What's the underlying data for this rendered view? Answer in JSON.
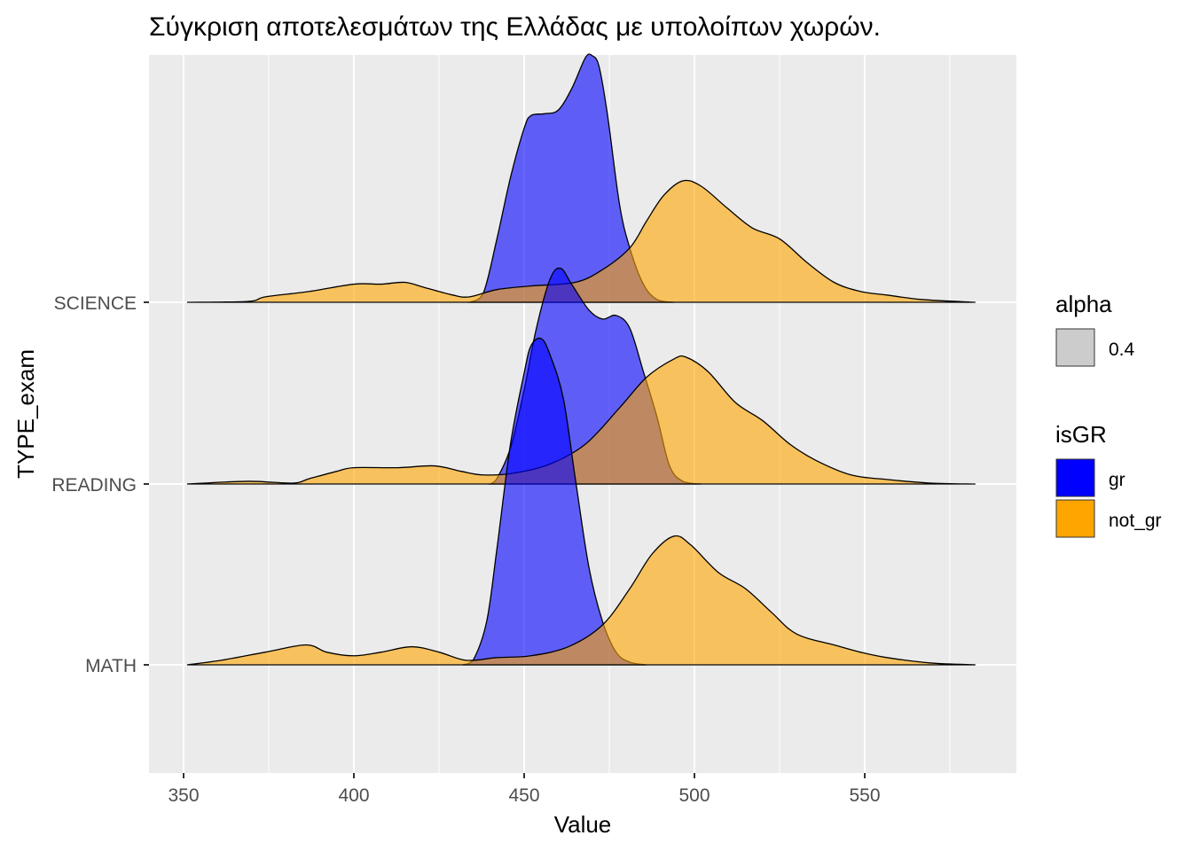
{
  "chart_data": {
    "type": "ridgeline-density",
    "title": "Σύγκριση αποτελεσμάτων της Ελλάδας με υπολοίπων χωρών.",
    "xlabel": "Value",
    "ylabel": "TYPE_exam",
    "xlim": [
      340,
      595
    ],
    "x_ticks": [
      350,
      400,
      450,
      500,
      550
    ],
    "categories": [
      "MATH",
      "READING",
      "SCIENCE"
    ],
    "grid": true,
    "legend_position": "right",
    "legend": {
      "alpha": {
        "title": "alpha",
        "entries": [
          {
            "label": "0.4",
            "color": "#cccccc"
          }
        ]
      },
      "isGR": {
        "title": "isGR",
        "entries": [
          {
            "label": "gr",
            "color": "#0000ff"
          },
          {
            "label": "not_gr",
            "color": "#ffa500"
          }
        ]
      }
    },
    "fill_alpha": 0.6,
    "series": [
      {
        "category": "SCIENCE",
        "group": "gr",
        "color": "#0000ff",
        "x": [
          434,
          438,
          442,
          446,
          450,
          452,
          456,
          460,
          464,
          468,
          470,
          472,
          474.5,
          478,
          481,
          485,
          489,
          494
        ],
        "height": [
          0,
          0.05,
          0.35,
          0.69,
          0.96,
          1.03,
          1.04,
          1.06,
          1.18,
          1.35,
          1.36,
          1.3,
          1.03,
          0.54,
          0.3,
          0.1,
          0.015,
          0
        ]
      },
      {
        "category": "SCIENCE",
        "group": "not_gr",
        "color": "#ffa500",
        "x": [
          351,
          369,
          374,
          387,
          400,
          408,
          415,
          421,
          429,
          434,
          442,
          452,
          465,
          473,
          481,
          486,
          491,
          496.6,
          502,
          509.6,
          517,
          525,
          533,
          541,
          548.7,
          556.5,
          567,
          582.5
        ],
        "height": [
          0,
          0.005,
          0.03,
          0.06,
          0.1,
          0.1,
          0.11,
          0.08,
          0.04,
          0.03,
          0.07,
          0.09,
          0.11,
          0.18,
          0.3,
          0.45,
          0.59,
          0.67,
          0.64,
          0.52,
          0.41,
          0.35,
          0.22,
          0.11,
          0.06,
          0.04,
          0.015,
          0
        ]
      },
      {
        "category": "READING",
        "group": "gr",
        "color": "#0000ff",
        "x": [
          440,
          442,
          446,
          450,
          453.6,
          457.6,
          460.7,
          464,
          469,
          473,
          477,
          481,
          485,
          489,
          492.7,
          496.6,
          502
        ],
        "height": [
          0,
          0.03,
          0.2,
          0.52,
          0.86,
          1.13,
          1.19,
          1.1,
          0.96,
          0.91,
          0.93,
          0.86,
          0.62,
          0.37,
          0.1,
          0.015,
          0
        ]
      },
      {
        "category": "READING",
        "group": "not_gr",
        "color": "#ffa500",
        "x": [
          351,
          369,
          382,
          387,
          395,
          400,
          413,
          423.7,
          431.5,
          438,
          447,
          457.6,
          468,
          478,
          486,
          494,
          497.5,
          504,
          512,
          520,
          528,
          535.7,
          546,
          556.5,
          569.5,
          582.5
        ],
        "height": [
          0,
          0.015,
          0.005,
          0.03,
          0.07,
          0.09,
          0.09,
          0.1,
          0.07,
          0.05,
          0.06,
          0.11,
          0.22,
          0.42,
          0.59,
          0.69,
          0.7,
          0.62,
          0.45,
          0.35,
          0.22,
          0.13,
          0.05,
          0.025,
          0.005,
          0
        ]
      },
      {
        "category": "MATH",
        "group": "gr",
        "color": "#0000ff",
        "x": [
          432,
          435,
          439,
          442,
          446,
          450,
          452,
          455,
          457.6,
          461.5,
          465,
          469,
          473,
          477,
          481,
          486
        ],
        "height": [
          0,
          0.025,
          0.24,
          0.64,
          1.22,
          1.61,
          1.76,
          1.8,
          1.71,
          1.47,
          1.03,
          0.54,
          0.24,
          0.07,
          0.015,
          0
        ]
      },
      {
        "category": "MATH",
        "group": "not_gr",
        "color": "#ffa500",
        "x": [
          351,
          361,
          374,
          386,
          392,
          400,
          408,
          417,
          425,
          433,
          442,
          452,
          463,
          473,
          481,
          487.5,
          494,
          499,
          507,
          515,
          522.6,
          530,
          541,
          548.7,
          556.5,
          569.5,
          582.5
        ],
        "height": [
          0,
          0.025,
          0.07,
          0.11,
          0.07,
          0.05,
          0.07,
          0.1,
          0.07,
          0.025,
          0.04,
          0.05,
          0.1,
          0.22,
          0.42,
          0.61,
          0.71,
          0.66,
          0.51,
          0.42,
          0.29,
          0.17,
          0.11,
          0.07,
          0.04,
          0.01,
          0
        ]
      }
    ]
  }
}
